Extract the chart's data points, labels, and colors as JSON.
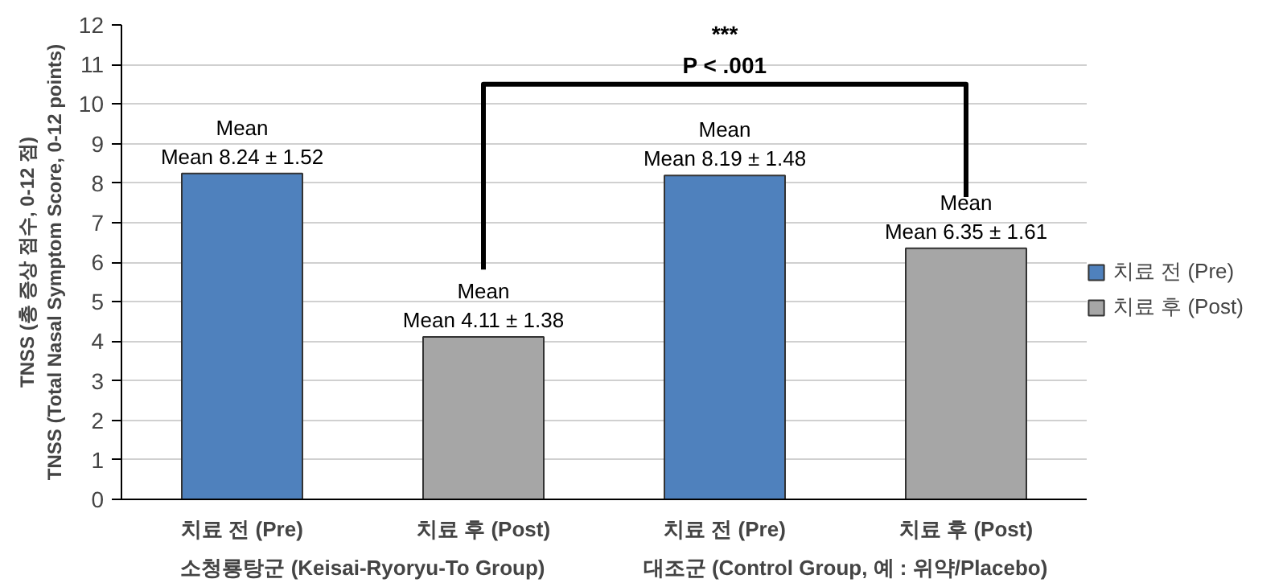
{
  "chart_data": {
    "type": "bar",
    "ylabel": "TNSS (총 증상 점수, 0-12 점)\nTNSS (Total Nasal Symptom Score, 0-12 points)",
    "categories": [
      "치료 전 (Pre)",
      "치료 후 (Post)",
      "치료 전 (Pre)",
      "치료 후 (Post)"
    ],
    "series": [
      {
        "name": "치료 전 (Pre)",
        "color": "#4f81bd",
        "values": [
          8.24,
          null,
          8.19,
          null
        ],
        "value_labels": [
          "Mean\nMean 8.24 ± 1.52",
          null,
          "Mean\nMean 8.19 ± 1.48",
          null
        ]
      },
      {
        "name": "치료 후 (Post)",
        "color": "#a6a6a6",
        "values": [
          null,
          4.11,
          null,
          6.35
        ],
        "value_labels": [
          null,
          "Mean\nMean 4.11 ± 1.38",
          null,
          "Mean\nMean 6.35 ± 1.61"
        ]
      }
    ],
    "annotations": [
      "소청룡탕군 (Keisai-Ryoryu-To Group)",
      "대조군 (Control Group, 예 : 위약/Placebo)",
      "***\nP < .001"
    ],
    "ylim": [
      0,
      12
    ],
    "yticks": [
      0,
      1,
      2,
      3,
      4,
      5,
      6,
      7,
      8,
      9,
      10,
      11,
      12
    ],
    "grid": "y",
    "legend": "right"
  }
}
